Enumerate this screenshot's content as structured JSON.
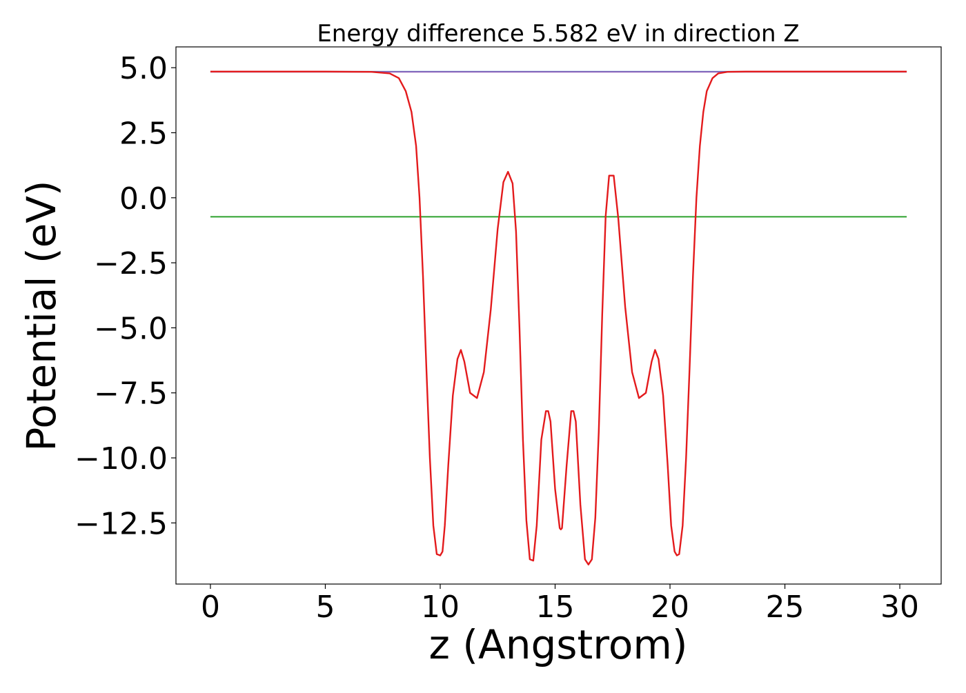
{
  "chart_data": {
    "type": "line",
    "title": "Energy difference 5.582 eV in direction Z",
    "xlabel": "z (Angstrom)",
    "ylabel": "Potential (eV)",
    "xlim": [
      -1.5,
      31.8
    ],
    "ylim": [
      -14.85,
      5.8
    ],
    "xticks": [
      0,
      5,
      10,
      15,
      20,
      25,
      30
    ],
    "xtick_labels": [
      "0",
      "5",
      "10",
      "15",
      "20",
      "25",
      "30"
    ],
    "yticks": [
      5.0,
      2.5,
      0.0,
      -2.5,
      -5.0,
      -7.5,
      -10.0,
      -12.5
    ],
    "ytick_labels": [
      "5.0",
      "2.5",
      "0.0",
      "−2.5",
      "−5.0",
      "−7.5",
      "−10.0",
      "−12.5"
    ],
    "grid": false,
    "legend": "none",
    "series": [
      {
        "color": "#1f77b4",
        "x": [
          0,
          30.3
        ],
        "y": [
          4.85,
          4.85
        ]
      },
      {
        "color": "#2ca02c",
        "x": [
          0,
          30.3
        ],
        "y": [
          -0.73,
          -0.73
        ]
      },
      {
        "color": "#9467bd",
        "x": [
          0,
          8.0,
          22.5,
          30.3
        ],
        "y": [
          4.84,
          4.84,
          4.84,
          4.84
        ]
      },
      {
        "color": "#e31a1c",
        "x": [
          0.0,
          5.0,
          7.0,
          7.8,
          8.2,
          8.5,
          8.75,
          8.95,
          9.1,
          9.25,
          9.4,
          9.55,
          9.7,
          9.85,
          10.0,
          10.1,
          10.2,
          10.35,
          10.55,
          10.75,
          10.9,
          11.05,
          11.3,
          11.6,
          11.9,
          12.2,
          12.5,
          12.75,
          12.95,
          13.15,
          13.3,
          13.45,
          13.6,
          13.75,
          13.9,
          14.05,
          14.2,
          14.4,
          14.6,
          14.7,
          14.8,
          15.0,
          15.2,
          15.25,
          15.3,
          15.5,
          15.7,
          15.8,
          15.9,
          16.1,
          16.3,
          16.45,
          16.6,
          16.75,
          16.9,
          17.05,
          17.2,
          17.35,
          17.55,
          17.75,
          18.05,
          18.35,
          18.65,
          18.95,
          19.2,
          19.35,
          19.5,
          19.7,
          19.9,
          20.05,
          20.2,
          20.3,
          20.4,
          20.55,
          20.7,
          20.85,
          21.0,
          21.15,
          21.3,
          21.45,
          21.6,
          21.85,
          22.1,
          22.5,
          23.3,
          25.3,
          30.3
        ],
        "y": [
          4.85,
          4.85,
          4.84,
          4.78,
          4.6,
          4.1,
          3.3,
          2.0,
          0.0,
          -3.0,
          -6.6,
          -10.0,
          -12.6,
          -13.7,
          -13.75,
          -13.6,
          -12.6,
          -10.3,
          -7.6,
          -6.2,
          -5.85,
          -6.3,
          -7.5,
          -7.7,
          -6.7,
          -4.3,
          -1.2,
          0.6,
          1.0,
          0.55,
          -1.3,
          -5.0,
          -9.3,
          -12.4,
          -13.9,
          -13.95,
          -12.6,
          -9.3,
          -8.2,
          -8.2,
          -8.6,
          -11.2,
          -12.7,
          -12.75,
          -12.7,
          -10.3,
          -8.2,
          -8.2,
          -8.6,
          -11.8,
          -13.9,
          -14.1,
          -13.9,
          -12.3,
          -9.0,
          -4.5,
          -0.7,
          0.85,
          0.85,
          -0.8,
          -4.2,
          -6.7,
          -7.7,
          -7.5,
          -6.3,
          -5.85,
          -6.2,
          -7.6,
          -10.3,
          -12.6,
          -13.6,
          -13.75,
          -13.7,
          -12.6,
          -10.0,
          -6.6,
          -3.0,
          0.0,
          2.0,
          3.3,
          4.1,
          4.6,
          4.78,
          4.84,
          4.85,
          4.85,
          4.85
        ]
      }
    ]
  }
}
